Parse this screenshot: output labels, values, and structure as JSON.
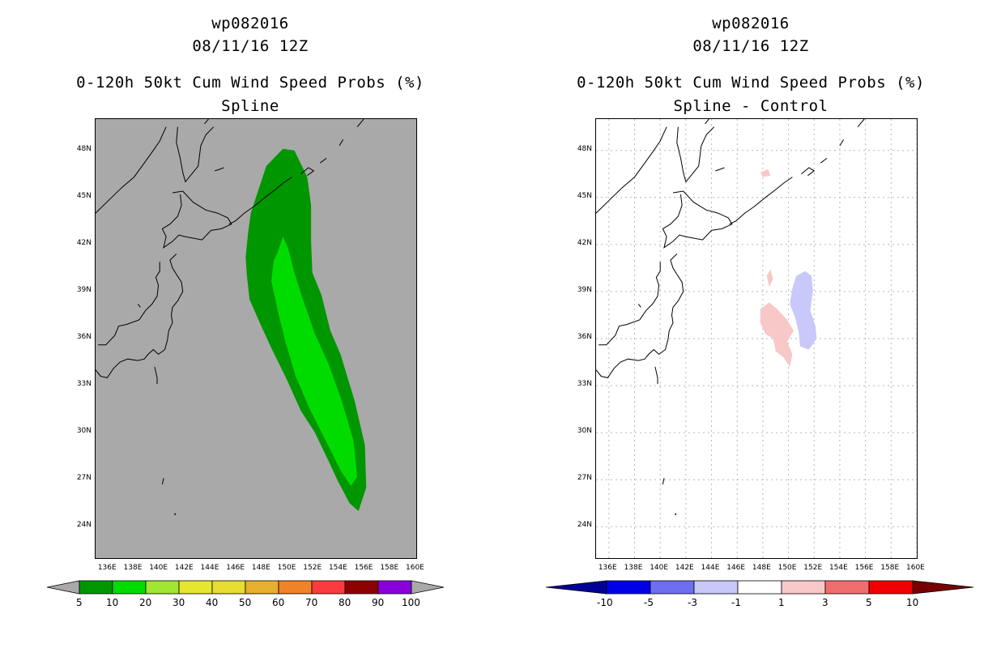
{
  "panels": [
    {
      "id": "spline",
      "title_storm": "wp082016",
      "title_time": "08/11/16 12Z",
      "title_product": "0-120h 50kt Cum Wind Speed Probs (%)",
      "title_method": "Spline",
      "background": "#a9a9a9",
      "grid": false
    },
    {
      "id": "diff",
      "title_storm": "wp082016",
      "title_time": "08/11/16 12Z",
      "title_product": "0-120h 50kt Cum Wind Speed Probs (%)",
      "title_method": "Spline - Control",
      "background": "#ffffff",
      "grid": true
    }
  ],
  "chart_data": [
    {
      "type": "heatmap",
      "title": "wp082016 08/11/16 12Z 0-120h 50kt Cum Wind Speed Probs (%) Spline",
      "xlabel": "",
      "ylabel": "",
      "xlim": [
        135,
        160
      ],
      "ylim": [
        22,
        50
      ],
      "x_ticks": [
        "136E",
        "138E",
        "140E",
        "142E",
        "144E",
        "146E",
        "148E",
        "150E",
        "152E",
        "154E",
        "156E",
        "158E",
        "160E"
      ],
      "y_ticks": [
        "24N",
        "27N",
        "30N",
        "33N",
        "36N",
        "39N",
        "42N",
        "45N",
        "48N"
      ],
      "x_tick_values": [
        136,
        138,
        140,
        142,
        144,
        146,
        148,
        150,
        152,
        154,
        156,
        158,
        160
      ],
      "y_tick_values": [
        24,
        27,
        30,
        33,
        36,
        39,
        42,
        45,
        48
      ],
      "colorbar": {
        "labels": [
          "5",
          "10",
          "20",
          "30",
          "40",
          "50",
          "60",
          "70",
          "80",
          "90",
          "100"
        ],
        "colors": [
          "#009600",
          "#00dc00",
          "#a0e632",
          "#e6e632",
          "#e6dc32",
          "#e6af2d",
          "#f08228",
          "#fa3c3c",
          "#8b0000",
          "#8a00dc"
        ],
        "end_color": "#a9a9a9"
      },
      "regions": [
        {
          "level": "5-10",
          "color": "#009600",
          "lonlat": [
            [
              149.6,
              48.1
            ],
            [
              150.5,
              48.0
            ],
            [
              151.5,
              46.3
            ],
            [
              151.8,
              44.5
            ],
            [
              151.8,
              42.2
            ],
            [
              151.9,
              40.2
            ],
            [
              152.6,
              38.8
            ],
            [
              153.3,
              36.5
            ],
            [
              154.1,
              35.0
            ],
            [
              155.2,
              32.0
            ],
            [
              156.0,
              29.2
            ],
            [
              156.1,
              26.5
            ],
            [
              155.5,
              25.0
            ],
            [
              154.8,
              25.5
            ],
            [
              153.9,
              26.9
            ],
            [
              153.1,
              28.3
            ],
            [
              152.1,
              30.0
            ],
            [
              151.0,
              31.4
            ],
            [
              149.9,
              33.4
            ],
            [
              148.7,
              35.4
            ],
            [
              147.8,
              37.0
            ],
            [
              147.0,
              38.5
            ],
            [
              146.8,
              40.0
            ],
            [
              146.7,
              41.2
            ],
            [
              146.9,
              42.8
            ],
            [
              147.1,
              44.0
            ],
            [
              147.7,
              45.5
            ],
            [
              148.3,
              47.0
            ]
          ]
        },
        {
          "level": "10-20",
          "color": "#00dc00",
          "lonlat": [
            [
              149.6,
              42.5
            ],
            [
              150.0,
              41.8
            ],
            [
              150.5,
              40.2
            ],
            [
              151.2,
              38.4
            ],
            [
              152.1,
              36.3
            ],
            [
              153.2,
              34.3
            ],
            [
              154.2,
              32.0
            ],
            [
              155.1,
              29.5
            ],
            [
              155.4,
              27.2
            ],
            [
              154.9,
              26.6
            ],
            [
              154.1,
              27.6
            ],
            [
              153.0,
              29.4
            ],
            [
              151.7,
              31.5
            ],
            [
              150.6,
              33.6
            ],
            [
              149.8,
              35.8
            ],
            [
              149.2,
              37.8
            ],
            [
              148.7,
              39.7
            ],
            [
              148.9,
              41.0
            ],
            [
              149.2,
              41.5
            ]
          ]
        }
      ]
    },
    {
      "type": "heatmap",
      "title": "wp082016 08/11/16 12Z 0-120h 50kt Cum Wind Speed Probs (%) Spline - Control",
      "xlabel": "",
      "ylabel": "",
      "xlim": [
        135,
        160
      ],
      "ylim": [
        22,
        50
      ],
      "x_ticks": [
        "136E",
        "138E",
        "140E",
        "142E",
        "144E",
        "146E",
        "148E",
        "150E",
        "152E",
        "154E",
        "156E",
        "158E",
        "160E"
      ],
      "y_ticks": [
        "24N",
        "27N",
        "30N",
        "33N",
        "36N",
        "39N",
        "42N",
        "45N",
        "48N"
      ],
      "x_tick_values": [
        136,
        138,
        140,
        142,
        144,
        146,
        148,
        150,
        152,
        154,
        156,
        158,
        160
      ],
      "y_tick_values": [
        24,
        27,
        30,
        33,
        36,
        39,
        42,
        45,
        48
      ],
      "colorbar": {
        "labels": [
          "-10",
          "-5",
          "-3",
          "-1",
          "1",
          "3",
          "5",
          "10"
        ],
        "colors": [
          "#0000e6",
          "#6e6ef0",
          "#c8c8f8",
          "#ffffff",
          "#f8c8c8",
          "#f06e6e",
          "#f00000"
        ],
        "left_end_color": "#000096",
        "right_end_color": "#780000"
      },
      "regions": [
        {
          "level": "-3 to -1",
          "color": "#c8c8fa",
          "lonlat": [
            [
              150.6,
              40.0
            ],
            [
              151.3,
              40.3
            ],
            [
              151.8,
              40.0
            ],
            [
              151.9,
              39.0
            ],
            [
              151.7,
              37.8
            ],
            [
              152.1,
              36.8
            ],
            [
              152.2,
              36.0
            ],
            [
              151.6,
              35.3
            ],
            [
              150.9,
              35.5
            ],
            [
              150.8,
              36.4
            ],
            [
              150.5,
              37.4
            ],
            [
              150.1,
              38.2
            ],
            [
              150.3,
              39.2
            ]
          ]
        },
        {
          "level": "1 to 3",
          "color": "#f8c8c8",
          "lonlat": [
            [
              147.8,
              37.9
            ],
            [
              148.5,
              38.3
            ],
            [
              149.1,
              37.9
            ],
            [
              149.9,
              37.2
            ],
            [
              150.4,
              36.5
            ],
            [
              149.9,
              35.8
            ],
            [
              150.3,
              35.0
            ],
            [
              150.1,
              34.2
            ],
            [
              149.6,
              34.8
            ],
            [
              149.0,
              35.2
            ],
            [
              148.8,
              36.0
            ],
            [
              148.2,
              36.3
            ],
            [
              147.8,
              37.0
            ]
          ]
        },
        {
          "level": "1 to 3",
          "color": "#f8c8c8",
          "lonlat": [
            [
              148.3,
              40.0
            ],
            [
              148.6,
              40.4
            ],
            [
              148.8,
              39.8
            ],
            [
              148.5,
              39.3
            ]
          ]
        },
        {
          "level": "1 to 3",
          "color": "#f8c8c8",
          "lonlat": [
            [
              147.8,
              46.6
            ],
            [
              148.4,
              46.8
            ],
            [
              148.6,
              46.4
            ],
            [
              148.0,
              46.3
            ]
          ]
        }
      ]
    }
  ]
}
